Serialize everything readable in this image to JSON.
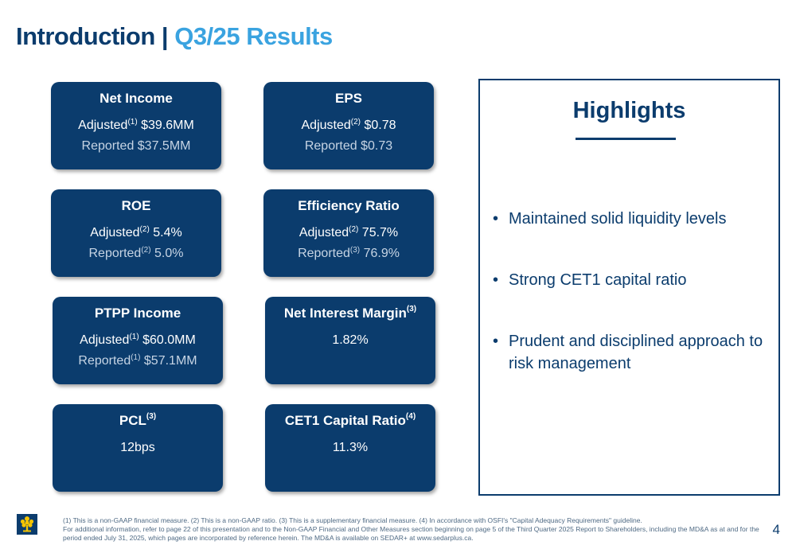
{
  "title": {
    "part1": "Introduction | ",
    "part2": "Q3/25 Results"
  },
  "cards": [
    {
      "title": "Net Income",
      "title_sup": "",
      "line1_label": "Adjusted",
      "line1_sup": "(1)",
      "line1_value": " $39.6MM",
      "line2_label": "Reported $37.5MM",
      "line2_sup": "",
      "line2_value": ""
    },
    {
      "title": "EPS",
      "title_sup": "",
      "line1_label": "Adjusted",
      "line1_sup": "(2)",
      "line1_value": " $0.78",
      "line2_label": "Reported $0.73",
      "line2_sup": "",
      "line2_value": ""
    },
    {
      "title": "ROE",
      "title_sup": "",
      "line1_label": "Adjusted",
      "line1_sup": "(2)",
      "line1_value": " 5.4%",
      "line2_label": "Reported",
      "line2_sup": "(2)",
      "line2_value": " 5.0%"
    },
    {
      "title": "Efficiency Ratio",
      "title_sup": "",
      "line1_label": "Adjusted",
      "line1_sup": "(2)",
      "line1_value": " 75.7%",
      "line2_label": "Reported",
      "line2_sup": "(3)",
      "line2_value": " 76.9%"
    },
    {
      "title": "PTPP Income",
      "title_sup": "",
      "line1_label": "Adjusted",
      "line1_sup": "(1)",
      "line1_value": " $60.0MM",
      "line2_label": "Reported",
      "line2_sup": "(1)",
      "line2_value": " $57.1MM"
    },
    {
      "title": "Net Interest Margin",
      "title_sup": "(3)",
      "line1_label": "1.82%",
      "line1_sup": "",
      "line1_value": "",
      "line2_label": "",
      "line2_sup": "",
      "line2_value": ""
    },
    {
      "title": "PCL",
      "title_sup": "(3)",
      "line1_label": "12bps",
      "line1_sup": "",
      "line1_value": "",
      "line2_label": "",
      "line2_sup": "",
      "line2_value": ""
    },
    {
      "title": "CET1 Capital Ratio",
      "title_sup": "(4)",
      "line1_label": "11.3%",
      "line1_sup": "",
      "line1_value": "",
      "line2_label": "",
      "line2_sup": "",
      "line2_value": ""
    }
  ],
  "highlights": {
    "title": "Highlights",
    "items": [
      "Maintained solid liquidity levels",
      "Strong CET1 capital ratio",
      "Prudent and disciplined approach to risk management"
    ]
  },
  "footnote": {
    "line1": "(1) This is a non-GAAP financial measure. (2) This is a non-GAAP ratio. (3) This is a supplementary financial measure. (4) In accordance with OSFI's \"Capital Adequacy Requirements\" guideline.",
    "line2": "For additional information, refer to page 22 of this presentation and to the Non-GAAP Financial and Other Measures section beginning on page 5 of the Third Quarter 2025 Report to Shareholders, including the MD&A as at and for the period ended July 31, 2025, which pages are incorporated by reference herein. The MD&A is available on SEDAR+ at www.sedarplus.ca."
  },
  "page_number": "4",
  "colors": {
    "navy": "#0b3c6d",
    "accent": "#3aa3e0",
    "logo_yellow": "#f5c400"
  },
  "logo_icon": "tree-logo-icon"
}
